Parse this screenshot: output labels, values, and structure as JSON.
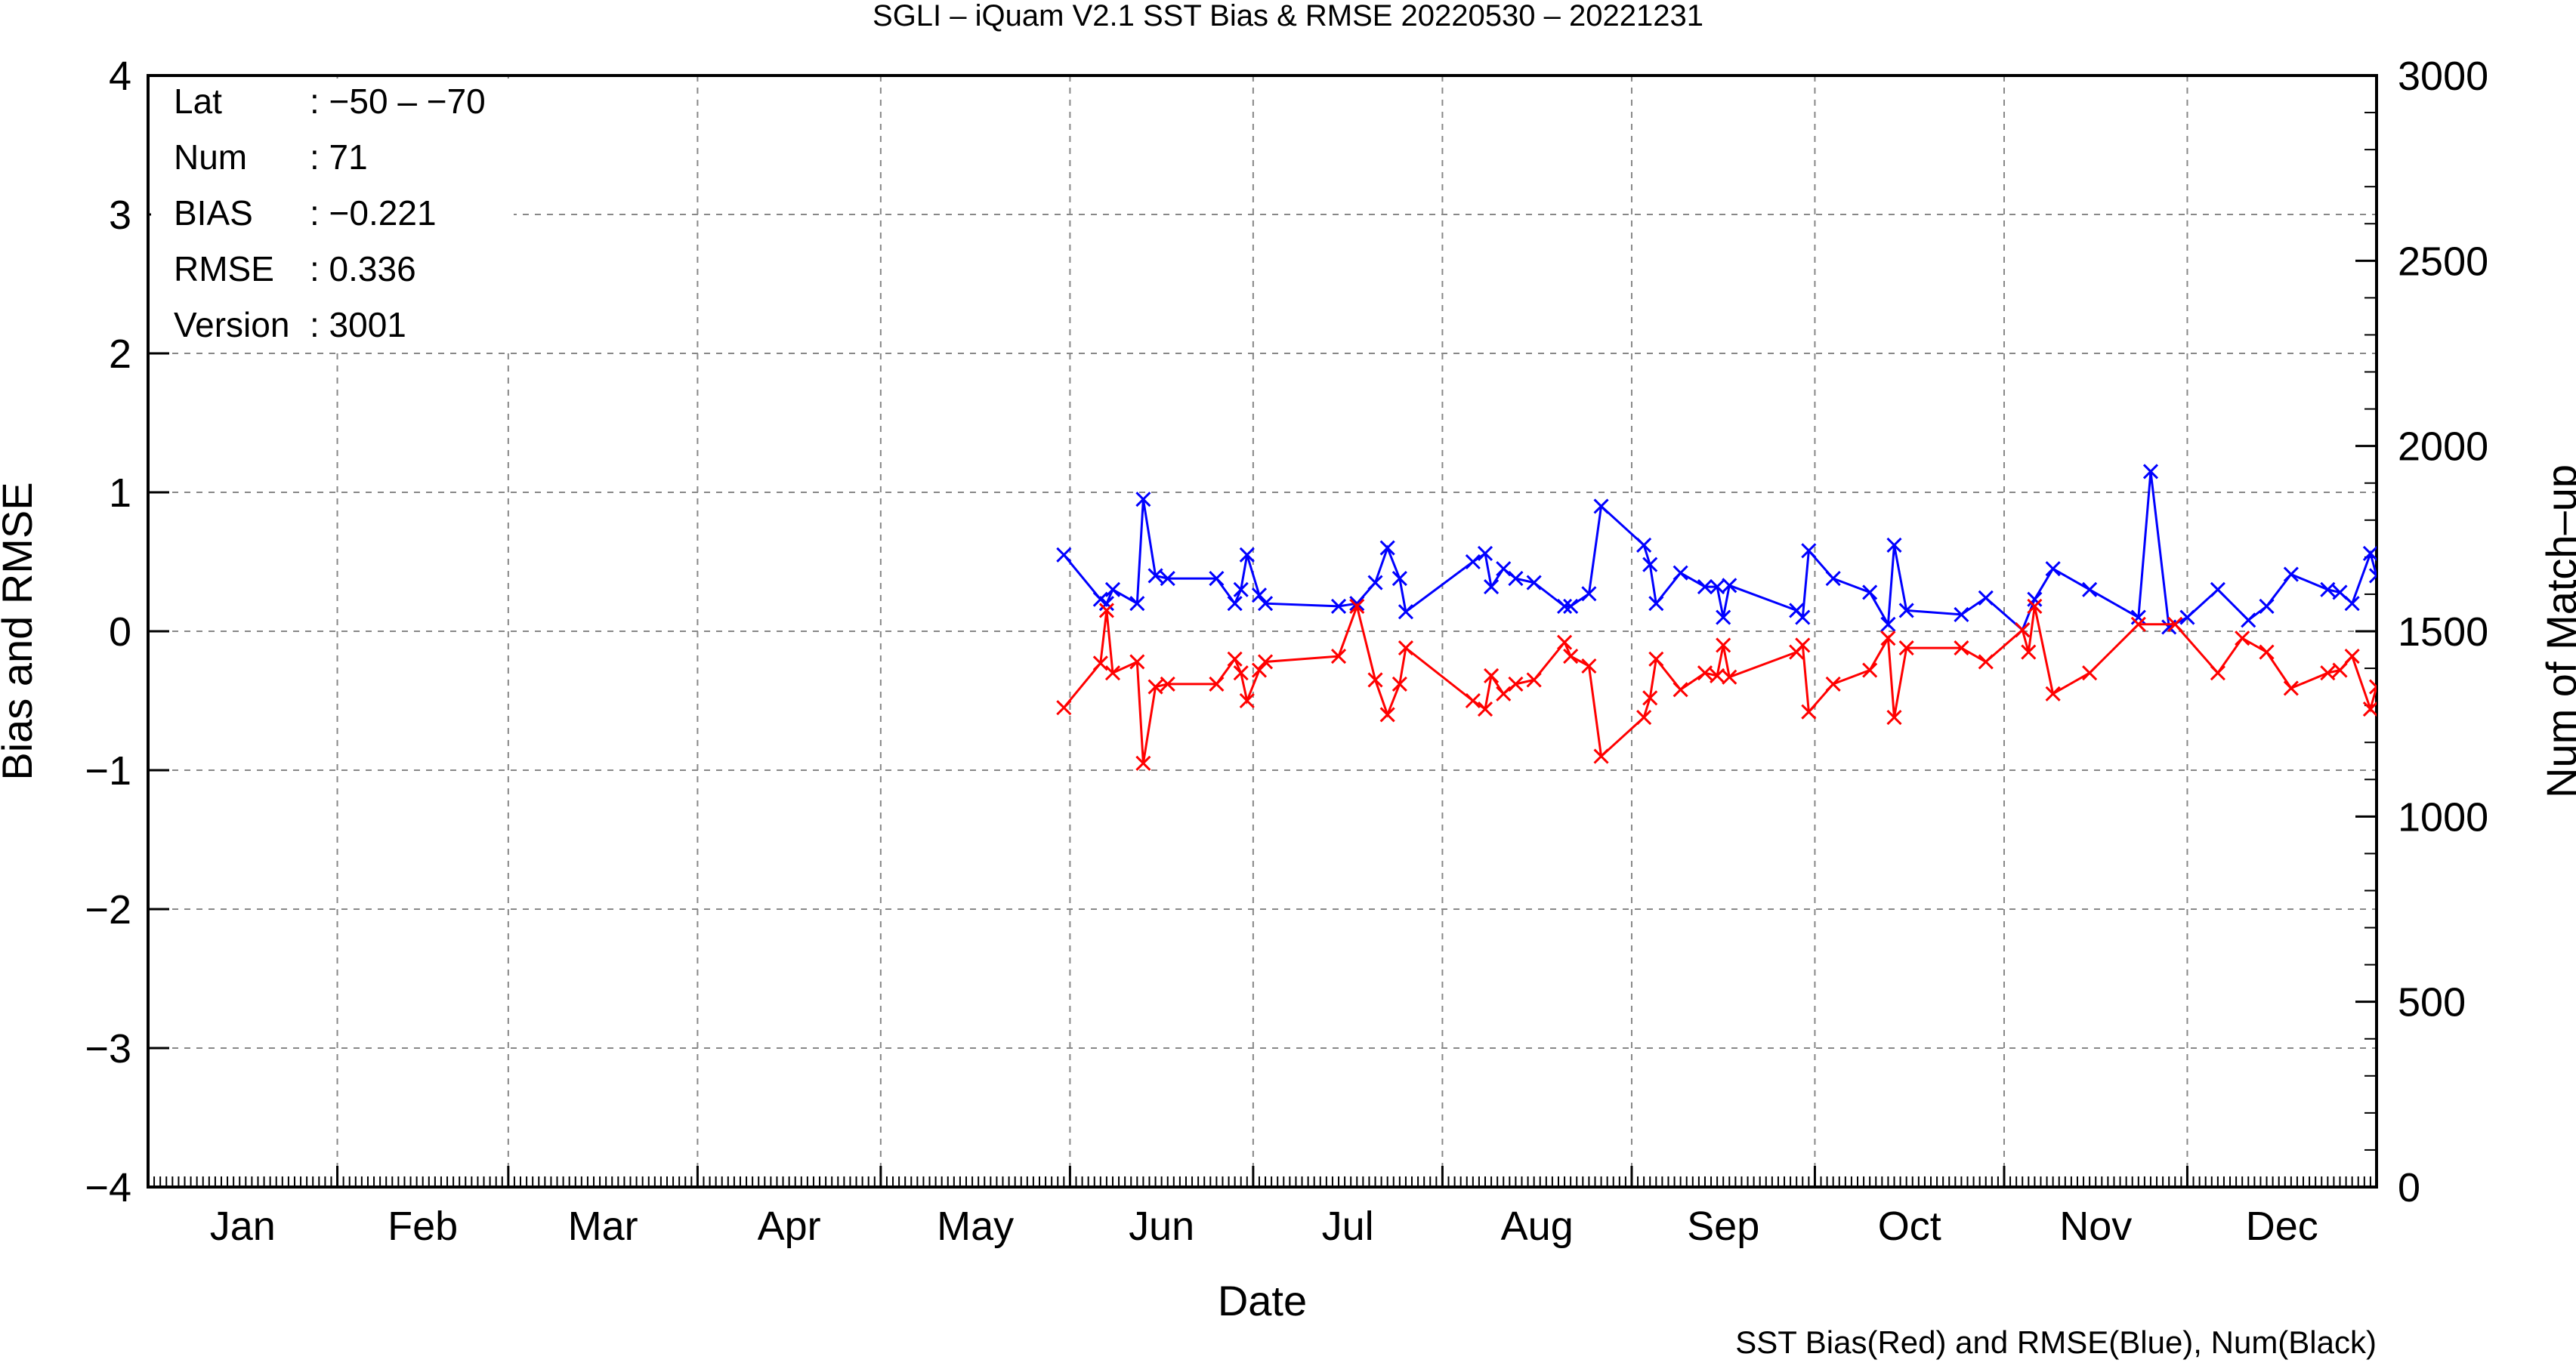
{
  "chart_data": {
    "type": "line",
    "title": "SGLI – iQuam V2.1 SST Bias & RMSE 20220530 – 20221231",
    "xlabel": "Date",
    "ylabel": "Bias and RMSE",
    "y2label": "Num of Match–up",
    "footer": "SST Bias(Red) and RMSE(Blue), Num(Black)",
    "xlim": [
      "2022-01-01",
      "2023-01-01"
    ],
    "ylim": [
      -4,
      4
    ],
    "y2lim": [
      0,
      3000
    ],
    "grid": true,
    "x_tick_labels": [
      "Jan",
      "Feb",
      "Mar",
      "Apr",
      "May",
      "Jun",
      "Jul",
      "Aug",
      "Sep",
      "Oct",
      "Nov",
      "Dec"
    ],
    "y_ticks": [
      "4",
      "3",
      "2",
      "1",
      "0",
      "−1",
      "−2",
      "−3",
      "−4"
    ],
    "y2_ticks": [
      "3000",
      "2500",
      "2000",
      "1500",
      "1000",
      "500",
      "0"
    ],
    "stats": [
      {
        "key": "Lat",
        "value": ": −50 – −70"
      },
      {
        "key": "Num",
        "value": ": 71"
      },
      {
        "key": "BIAS",
        "value": ": −0.221"
      },
      {
        "key": "RMSE",
        "value": ": 0.336"
      },
      {
        "key": "Version",
        "value": ": 3001"
      }
    ],
    "series": [
      {
        "name": "RMSE",
        "color": "#0000ff",
        "points": [
          [
            "2022-05-31",
            0.55
          ],
          [
            "2022-06-06",
            0.23
          ],
          [
            "2022-06-07",
            0.2
          ],
          [
            "2022-06-08",
            0.3
          ],
          [
            "2022-06-12",
            0.2
          ],
          [
            "2022-06-13",
            0.95
          ],
          [
            "2022-06-15",
            0.4
          ],
          [
            "2022-06-17",
            0.38
          ],
          [
            "2022-06-25",
            0.38
          ],
          [
            "2022-06-28",
            0.2
          ],
          [
            "2022-06-29",
            0.3
          ],
          [
            "2022-06-30",
            0.55
          ],
          [
            "2022-07-02",
            0.26
          ],
          [
            "2022-07-03",
            0.2
          ],
          [
            "2022-07-15",
            0.18
          ],
          [
            "2022-07-18",
            0.2
          ],
          [
            "2022-07-21",
            0.35
          ],
          [
            "2022-07-23",
            0.6
          ],
          [
            "2022-07-25",
            0.38
          ],
          [
            "2022-07-26",
            0.14
          ],
          [
            "2022-08-06",
            0.5
          ],
          [
            "2022-08-08",
            0.56
          ],
          [
            "2022-08-09",
            0.32
          ],
          [
            "2022-08-11",
            0.45
          ],
          [
            "2022-08-13",
            0.38
          ],
          [
            "2022-08-16",
            0.35
          ],
          [
            "2022-08-21",
            0.18
          ],
          [
            "2022-08-22",
            0.18
          ],
          [
            "2022-08-25",
            0.27
          ],
          [
            "2022-08-27",
            0.9
          ],
          [
            "2022-09-03",
            0.62
          ],
          [
            "2022-09-04",
            0.48
          ],
          [
            "2022-09-05",
            0.2
          ],
          [
            "2022-09-09",
            0.42
          ],
          [
            "2022-09-13",
            0.32
          ],
          [
            "2022-09-15",
            0.32
          ],
          [
            "2022-09-16",
            0.1
          ],
          [
            "2022-09-17",
            0.33
          ],
          [
            "2022-09-28",
            0.15
          ],
          [
            "2022-09-29",
            0.1
          ],
          [
            "2022-09-30",
            0.58
          ],
          [
            "2022-10-04",
            0.38
          ],
          [
            "2022-10-10",
            0.28
          ],
          [
            "2022-10-13",
            0.05
          ],
          [
            "2022-10-14",
            0.62
          ],
          [
            "2022-10-16",
            0.15
          ],
          [
            "2022-10-25",
            0.12
          ],
          [
            "2022-10-29",
            0.24
          ],
          [
            "2022-11-04",
            0.01
          ],
          [
            "2022-11-06",
            0.23
          ],
          [
            "2022-11-09",
            0.45
          ],
          [
            "2022-11-15",
            0.3
          ],
          [
            "2022-11-23",
            0.1
          ],
          [
            "2022-11-25",
            1.15
          ],
          [
            "2022-11-28",
            0.03
          ],
          [
            "2022-12-01",
            0.1
          ],
          [
            "2022-12-06",
            0.3
          ],
          [
            "2022-12-11",
            0.08
          ],
          [
            "2022-12-14",
            0.18
          ],
          [
            "2022-12-18",
            0.41
          ],
          [
            "2022-12-24",
            0.3
          ],
          [
            "2022-12-26",
            0.28
          ],
          [
            "2022-12-28",
            0.2
          ],
          [
            "2022-12-31",
            0.56
          ],
          [
            "2023-01-01",
            0.4
          ]
        ]
      },
      {
        "name": "Bias",
        "color": "#ff0000",
        "points": [
          [
            "2022-05-31",
            -0.55
          ],
          [
            "2022-06-06",
            -0.23
          ],
          [
            "2022-06-07",
            0.15
          ],
          [
            "2022-06-08",
            -0.3
          ],
          [
            "2022-06-12",
            -0.22
          ],
          [
            "2022-06-13",
            -0.95
          ],
          [
            "2022-06-15",
            -0.4
          ],
          [
            "2022-06-17",
            -0.38
          ],
          [
            "2022-06-25",
            -0.38
          ],
          [
            "2022-06-28",
            -0.2
          ],
          [
            "2022-06-29",
            -0.3
          ],
          [
            "2022-06-30",
            -0.5
          ],
          [
            "2022-07-02",
            -0.28
          ],
          [
            "2022-07-03",
            -0.22
          ],
          [
            "2022-07-15",
            -0.18
          ],
          [
            "2022-07-18",
            0.18
          ],
          [
            "2022-07-21",
            -0.35
          ],
          [
            "2022-07-23",
            -0.6
          ],
          [
            "2022-07-25",
            -0.38
          ],
          [
            "2022-07-26",
            -0.12
          ],
          [
            "2022-08-06",
            -0.5
          ],
          [
            "2022-08-08",
            -0.56
          ],
          [
            "2022-08-09",
            -0.32
          ],
          [
            "2022-08-11",
            -0.45
          ],
          [
            "2022-08-13",
            -0.38
          ],
          [
            "2022-08-16",
            -0.35
          ],
          [
            "2022-08-21",
            -0.08
          ],
          [
            "2022-08-22",
            -0.18
          ],
          [
            "2022-08-25",
            -0.25
          ],
          [
            "2022-08-27",
            -0.9
          ],
          [
            "2022-09-03",
            -0.62
          ],
          [
            "2022-09-04",
            -0.48
          ],
          [
            "2022-09-05",
            -0.2
          ],
          [
            "2022-09-09",
            -0.42
          ],
          [
            "2022-09-13",
            -0.3
          ],
          [
            "2022-09-15",
            -0.32
          ],
          [
            "2022-09-16",
            -0.1
          ],
          [
            "2022-09-17",
            -0.33
          ],
          [
            "2022-09-28",
            -0.15
          ],
          [
            "2022-09-29",
            -0.1
          ],
          [
            "2022-09-30",
            -0.58
          ],
          [
            "2022-10-04",
            -0.38
          ],
          [
            "2022-10-10",
            -0.28
          ],
          [
            "2022-10-13",
            -0.05
          ],
          [
            "2022-10-14",
            -0.62
          ],
          [
            "2022-10-16",
            -0.12
          ],
          [
            "2022-10-25",
            -0.12
          ],
          [
            "2022-10-29",
            -0.22
          ],
          [
            "2022-11-04",
            0.01
          ],
          [
            "2022-11-05",
            -0.15
          ],
          [
            "2022-11-06",
            0.18
          ],
          [
            "2022-11-09",
            -0.45
          ],
          [
            "2022-11-15",
            -0.3
          ],
          [
            "2022-11-23",
            0.05
          ],
          [
            "2022-11-29",
            0.05
          ],
          [
            "2022-12-06",
            -0.3
          ],
          [
            "2022-12-10",
            -0.05
          ],
          [
            "2022-12-14",
            -0.15
          ],
          [
            "2022-12-18",
            -0.41
          ],
          [
            "2022-12-24",
            -0.3
          ],
          [
            "2022-12-26",
            -0.28
          ],
          [
            "2022-12-28",
            -0.18
          ],
          [
            "2022-12-31",
            -0.56
          ],
          [
            "2023-01-01",
            -0.4
          ]
        ]
      }
    ]
  }
}
